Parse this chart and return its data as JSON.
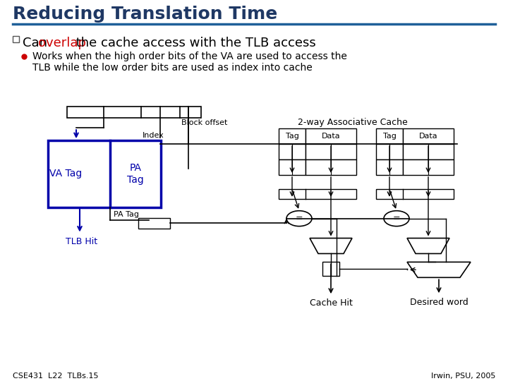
{
  "title": "Reducing Translation Time",
  "title_color": "#1F3864",
  "title_underline_color": "#1F6099",
  "bullet1_pre": "Can ",
  "bullet1_overlap": "overlap",
  "bullet1_post": " the cache access with the TLB access",
  "bullet2_line1": "Works when the high order bits of the VA are used to access the",
  "bullet2_line2": "TLB while the low order bits are used as index into cache",
  "label_block_offset": "Block offset",
  "label_index": "Index",
  "label_va_tag": "VA Tag",
  "label_pa_tag_in_box": "PA\nTag",
  "label_pa_tag_out": "PA Tag",
  "label_tlb_hit": "TLB Hit",
  "label_tag1": "Tag",
  "label_data1": "Data",
  "label_tag2": "Tag",
  "label_data2": "Data",
  "label_assoc": "2-way Associative Cache",
  "label_cache_hit": "Cache Hit",
  "label_desired_word": "Desired word",
  "footer_left": "CSE431  L22  TLBs.15",
  "footer_right": "Irwin, PSU, 2005",
  "bg_color": "#FFFFFF",
  "tlb_box_color": "#0000AA",
  "text_color": "#000000",
  "overlap_color": "#CC0000",
  "tlb_hit_color": "#0000AA"
}
